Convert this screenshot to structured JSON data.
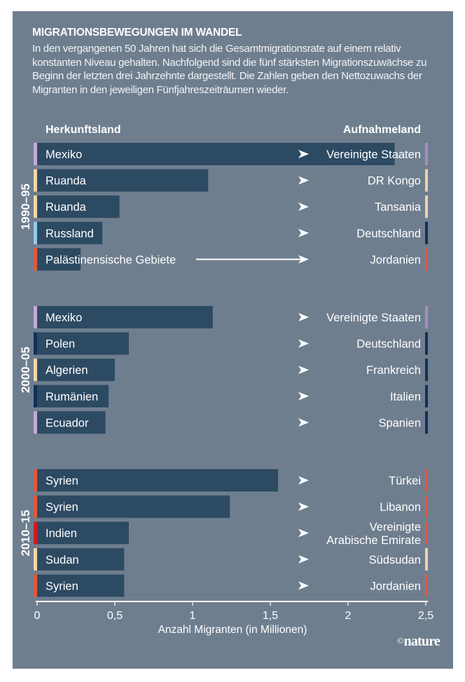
{
  "chart_data": {
    "type": "bar",
    "orientation": "horizontal",
    "title": "MIGRATIONSBEWEGUNGEN IM WANDEL",
    "subtitle": "In den vergangenen 50 Jahren hat sich die Gesamtmigrationsrate auf einem relativ konstanten Niveau gehalten. Nachfolgend sind die fünf stärksten Migrationszuwächse zu Beginn der letzten drei Jahrzehnte dargestellt. Die Zahlen geben den Nettozuwachs der Migranten  in den jeweiligen Fünfjahreszeiträumen wieder.",
    "origin_header": "Herkunftsland",
    "destination_header": "Aufnahmeland",
    "xlabel": "Anzahl Migranten (in Millionen)",
    "xlim": [
      0,
      2.5
    ],
    "xticks": [
      0,
      0.5,
      1,
      1.5,
      2,
      2.5
    ],
    "xtick_labels": [
      "0",
      "0,5",
      "1",
      "1,5",
      "2",
      "2,5"
    ],
    "grid": false,
    "groups": [
      {
        "period": "1990–95",
        "rows": [
          {
            "origin": "Mexiko",
            "destination": "Vereinigte Staaten",
            "value": 2.3,
            "origin_color": "#c5a9d6",
            "destination_color": "#a98bc4"
          },
          {
            "origin": "Ruanda",
            "destination": "DR Kongo",
            "value": 1.1,
            "origin_color": "#f1d6a4",
            "destination_color": "#ecd3a8"
          },
          {
            "origin": "Ruanda",
            "destination": "Tansania",
            "value": 0.53,
            "origin_color": "#f1d6a4",
            "destination_color": "#ecd3a8"
          },
          {
            "origin": "Russland",
            "destination": "Deutschland",
            "value": 0.42,
            "origin_color": "#8fcbe8",
            "destination_color": "#10305a"
          },
          {
            "origin": "Palästinensische Gebiete",
            "destination": "Jordanien",
            "value": 0.28,
            "origin_color": "#e05a3a",
            "destination_color": "#e05a3a"
          }
        ]
      },
      {
        "period": "2000–05",
        "rows": [
          {
            "origin": "Mexiko",
            "destination": "Vereinigte Staaten",
            "value": 1.13,
            "origin_color": "#c5a9d6",
            "destination_color": "#a98bc4"
          },
          {
            "origin": "Polen",
            "destination": "Deutschland",
            "value": 0.59,
            "origin_color": "#10305a",
            "destination_color": "#10305a"
          },
          {
            "origin": "Algerien",
            "destination": "Frankreich",
            "value": 0.5,
            "origin_color": "#f1d6a4",
            "destination_color": "#10305a"
          },
          {
            "origin": "Rumänien",
            "destination": "Italien",
            "value": 0.46,
            "origin_color": "#10305a",
            "destination_color": "#10305a"
          },
          {
            "origin": "Ecuador",
            "destination": "Spanien",
            "value": 0.44,
            "origin_color": "#c5a9d6",
            "destination_color": "#10305a"
          }
        ]
      },
      {
        "period": "2010–15",
        "rows": [
          {
            "origin": "Syrien",
            "destination": "Türkei",
            "value": 1.55,
            "origin_color": "#e05a3a",
            "destination_color": "#e05a3a"
          },
          {
            "origin": "Syrien",
            "destination": "Libanon",
            "value": 1.24,
            "origin_color": "#e05a3a",
            "destination_color": "#e05a3a"
          },
          {
            "origin": "Indien",
            "destination": "Vereinigte Arabische Emirate",
            "destination_lines": [
              "Vereinigte",
              "Arabische Emirate"
            ],
            "value": 0.59,
            "origin_color": "#d51a22",
            "destination_color": "#e05a3a"
          },
          {
            "origin": "Sudan",
            "destination": "Südsudan",
            "value": 0.56,
            "origin_color": "#f1d6a4",
            "destination_color": "#ecd3a8"
          },
          {
            "origin": "Syrien",
            "destination": "Jordanien",
            "value": 0.56,
            "origin_color": "#e05a3a",
            "destination_color": "#e05a3a"
          }
        ]
      }
    ],
    "colors": {
      "background": "#6f7e8f",
      "bar": "#2d4a63",
      "text": "#ffffff",
      "arrow": "#ffffff"
    }
  },
  "credit": {
    "symbol": "©",
    "name": "nature"
  }
}
